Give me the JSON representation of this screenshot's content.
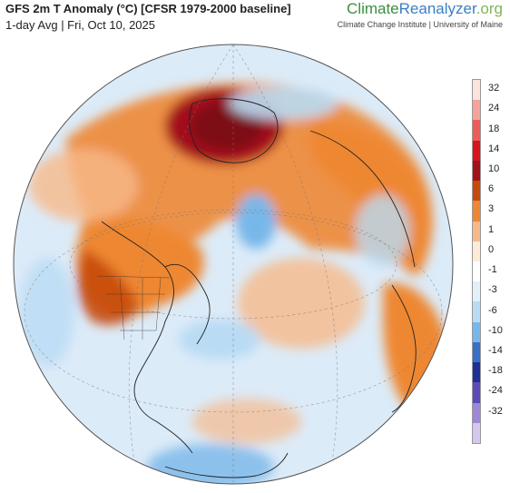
{
  "header": {
    "title": "GFS 2m T Anomaly (°C) [CFSR 1979-2000 baseline]",
    "subtitle": "1-day Avg | Fri, Oct 10, 2025",
    "brand_part1": "Climate",
    "brand_part2": "Reanalyzer",
    "brand_part3": ".org",
    "brand_sub": "Climate Change Institute | University of Maine"
  },
  "legend": {
    "labels": [
      "32",
      "24",
      "18",
      "14",
      "10",
      "6",
      "3",
      "1",
      "0",
      "-1",
      "-3",
      "-6",
      "-10",
      "-14",
      "-18",
      "-24",
      "-32"
    ],
    "colors": [
      "#fbe4dc",
      "#f4a39a",
      "#ef5b57",
      "#d8141d",
      "#a3101a",
      "#c74a0c",
      "#ee8733",
      "#f7b98a",
      "#fdebd8",
      "#ffffff",
      "#e2f0fb",
      "#b9dbf4",
      "#78b7ea",
      "#3a6fc6",
      "#1e2f96",
      "#5b4bb8",
      "#9c88d4",
      "#d6c7ec"
    ]
  },
  "colors": {
    "ocean_base": "#dcebf8",
    "warm_light": "#f7b98a",
    "warm_mid": "#ee8733",
    "warm_strong": "#d8661f",
    "hot": "#a3101a",
    "cool_light": "#b9dbf4",
    "cool_mid": "#78b7ea"
  }
}
